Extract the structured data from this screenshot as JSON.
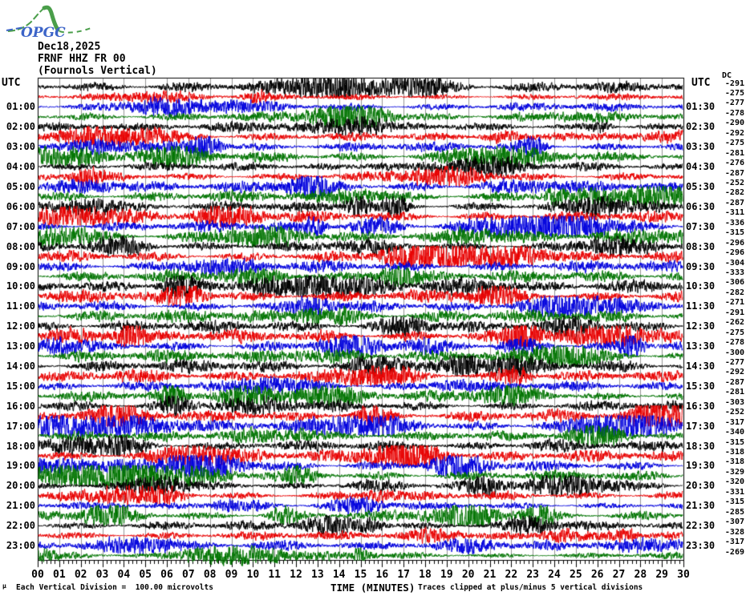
{
  "logo": {
    "text": "OPGC"
  },
  "header": {
    "date": "Dec18,2025",
    "station": "FRNF HHZ FR 00",
    "description": "(Fournols Vertical)"
  },
  "axes": {
    "left_header": "UTC",
    "right_header": "UTC",
    "dc_header": "DC",
    "x_label": "TIME (MINUTES)",
    "x_ticks": [
      "00",
      "01",
      "02",
      "03",
      "04",
      "05",
      "06",
      "07",
      "08",
      "09",
      "10",
      "11",
      "12",
      "13",
      "14",
      "15",
      "16",
      "17",
      "18",
      "19",
      "20",
      "21",
      "22",
      "23",
      "24",
      "25",
      "26",
      "27",
      "28",
      "29",
      "30"
    ],
    "footer_left": "Each Vertical Division =  100.00 microvolts",
    "footer_right": "Traces clipped at plus/minus 5 vertical divisions",
    "corner_mark": "µ"
  },
  "colors": {
    "black": "#000000",
    "red": "#e80000",
    "blue": "#0000dd",
    "green": "#007400",
    "grid": "#949494",
    "border": "#000000",
    "logo_green": "#4a9e4a",
    "logo_blue": "#3c64c8"
  },
  "chart_data": {
    "type": "line",
    "subtype": "helicorder",
    "title": "FRNF HHZ FR 00 (Fournols Vertical) Dec18,2025",
    "xlabel": "TIME (MINUTES)",
    "x_range": [
      0,
      30
    ],
    "row_duration_minutes": 30,
    "grid": "vertical lines every 1 minute",
    "legend_position": "none",
    "notes": [
      "Each Vertical Division =  100.00 microvolts",
      "Traces clipped at plus/minus 5 vertical divisions"
    ],
    "rows": [
      {
        "start": "00:00",
        "end": "00:30",
        "color": "black",
        "dc_offset": -291,
        "left_label": "",
        "right_label": ""
      },
      {
        "start": "00:30",
        "end": "01:00",
        "color": "red",
        "dc_offset": -275,
        "left_label": "",
        "right_label": ""
      },
      {
        "start": "01:00",
        "end": "01:30",
        "color": "blue",
        "dc_offset": -277,
        "left_label": "01:00",
        "right_label": "01:30"
      },
      {
        "start": "01:30",
        "end": "02:00",
        "color": "green",
        "dc_offset": -278,
        "left_label": "",
        "right_label": ""
      },
      {
        "start": "02:00",
        "end": "02:30",
        "color": "black",
        "dc_offset": -290,
        "left_label": "02:00",
        "right_label": "02:30"
      },
      {
        "start": "02:30",
        "end": "03:00",
        "color": "red",
        "dc_offset": -292,
        "left_label": "",
        "right_label": ""
      },
      {
        "start": "03:00",
        "end": "03:30",
        "color": "blue",
        "dc_offset": -275,
        "left_label": "03:00",
        "right_label": "03:30"
      },
      {
        "start": "03:30",
        "end": "04:00",
        "color": "green",
        "dc_offset": -281,
        "left_label": "",
        "right_label": ""
      },
      {
        "start": "04:00",
        "end": "04:30",
        "color": "black",
        "dc_offset": -276,
        "left_label": "04:00",
        "right_label": "04:30"
      },
      {
        "start": "04:30",
        "end": "05:00",
        "color": "red",
        "dc_offset": -287,
        "left_label": "",
        "right_label": ""
      },
      {
        "start": "05:00",
        "end": "05:30",
        "color": "blue",
        "dc_offset": -252,
        "left_label": "05:00",
        "right_label": "05:30"
      },
      {
        "start": "05:30",
        "end": "06:00",
        "color": "green",
        "dc_offset": -282,
        "left_label": "",
        "right_label": ""
      },
      {
        "start": "06:00",
        "end": "06:30",
        "color": "black",
        "dc_offset": -287,
        "left_label": "06:00",
        "right_label": "06:30"
      },
      {
        "start": "06:30",
        "end": "07:00",
        "color": "red",
        "dc_offset": -311,
        "left_label": "",
        "right_label": ""
      },
      {
        "start": "07:00",
        "end": "07:30",
        "color": "blue",
        "dc_offset": -336,
        "left_label": "07:00",
        "right_label": "07:30"
      },
      {
        "start": "07:30",
        "end": "08:00",
        "color": "green",
        "dc_offset": -315,
        "left_label": "",
        "right_label": ""
      },
      {
        "start": "08:00",
        "end": "08:30",
        "color": "black",
        "dc_offset": -296,
        "left_label": "08:00",
        "right_label": "08:30"
      },
      {
        "start": "08:30",
        "end": "09:00",
        "color": "red",
        "dc_offset": -296,
        "left_label": "",
        "right_label": ""
      },
      {
        "start": "09:00",
        "end": "09:30",
        "color": "blue",
        "dc_offset": -304,
        "left_label": "09:00",
        "right_label": "09:30"
      },
      {
        "start": "09:30",
        "end": "10:00",
        "color": "green",
        "dc_offset": -333,
        "left_label": "",
        "right_label": ""
      },
      {
        "start": "10:00",
        "end": "10:30",
        "color": "black",
        "dc_offset": -306,
        "left_label": "10:00",
        "right_label": "10:30"
      },
      {
        "start": "10:30",
        "end": "11:00",
        "color": "red",
        "dc_offset": -282,
        "left_label": "",
        "right_label": ""
      },
      {
        "start": "11:00",
        "end": "11:30",
        "color": "blue",
        "dc_offset": -271,
        "left_label": "11:00",
        "right_label": "11:30"
      },
      {
        "start": "11:30",
        "end": "12:00",
        "color": "green",
        "dc_offset": -291,
        "left_label": "",
        "right_label": ""
      },
      {
        "start": "12:00",
        "end": "12:30",
        "color": "black",
        "dc_offset": -262,
        "left_label": "12:00",
        "right_label": "12:30"
      },
      {
        "start": "12:30",
        "end": "13:00",
        "color": "red",
        "dc_offset": -275,
        "left_label": "",
        "right_label": ""
      },
      {
        "start": "13:00",
        "end": "13:30",
        "color": "blue",
        "dc_offset": -278,
        "left_label": "13:00",
        "right_label": "13:30"
      },
      {
        "start": "13:30",
        "end": "14:00",
        "color": "green",
        "dc_offset": -300,
        "left_label": "",
        "right_label": ""
      },
      {
        "start": "14:00",
        "end": "14:30",
        "color": "black",
        "dc_offset": -277,
        "left_label": "14:00",
        "right_label": "14:30"
      },
      {
        "start": "14:30",
        "end": "15:00",
        "color": "red",
        "dc_offset": -292,
        "left_label": "",
        "right_label": ""
      },
      {
        "start": "15:00",
        "end": "15:30",
        "color": "blue",
        "dc_offset": -287,
        "left_label": "15:00",
        "right_label": "15:30"
      },
      {
        "start": "15:30",
        "end": "16:00",
        "color": "green",
        "dc_offset": -281,
        "left_label": "",
        "right_label": ""
      },
      {
        "start": "16:00",
        "end": "16:30",
        "color": "black",
        "dc_offset": -303,
        "left_label": "16:00",
        "right_label": "16:30"
      },
      {
        "start": "16:30",
        "end": "17:00",
        "color": "red",
        "dc_offset": -252,
        "left_label": "",
        "right_label": ""
      },
      {
        "start": "17:00",
        "end": "17:30",
        "color": "blue",
        "dc_offset": -317,
        "left_label": "17:00",
        "right_label": "17:30"
      },
      {
        "start": "17:30",
        "end": "18:00",
        "color": "green",
        "dc_offset": -340,
        "left_label": "",
        "right_label": ""
      },
      {
        "start": "18:00",
        "end": "18:30",
        "color": "black",
        "dc_offset": -315,
        "left_label": "18:00",
        "right_label": "18:30"
      },
      {
        "start": "18:30",
        "end": "19:00",
        "color": "red",
        "dc_offset": -318,
        "left_label": "",
        "right_label": ""
      },
      {
        "start": "19:00",
        "end": "19:30",
        "color": "blue",
        "dc_offset": -318,
        "left_label": "19:00",
        "right_label": "19:30"
      },
      {
        "start": "19:30",
        "end": "20:00",
        "color": "green",
        "dc_offset": -329,
        "left_label": "",
        "right_label": ""
      },
      {
        "start": "20:00",
        "end": "20:30",
        "color": "black",
        "dc_offset": -320,
        "left_label": "20:00",
        "right_label": "20:30"
      },
      {
        "start": "20:30",
        "end": "21:00",
        "color": "red",
        "dc_offset": -331,
        "left_label": "",
        "right_label": ""
      },
      {
        "start": "21:00",
        "end": "21:30",
        "color": "blue",
        "dc_offset": -315,
        "left_label": "21:00",
        "right_label": "21:30"
      },
      {
        "start": "21:30",
        "end": "22:00",
        "color": "green",
        "dc_offset": -285,
        "left_label": "",
        "right_label": ""
      },
      {
        "start": "22:00",
        "end": "22:30",
        "color": "black",
        "dc_offset": -307,
        "left_label": "22:00",
        "right_label": "22:30"
      },
      {
        "start": "22:30",
        "end": "23:00",
        "color": "red",
        "dc_offset": -328,
        "left_label": "",
        "right_label": ""
      },
      {
        "start": "23:00",
        "end": "23:30",
        "color": "blue",
        "dc_offset": -317,
        "left_label": "23:00",
        "right_label": "23:30"
      },
      {
        "start": "23:30",
        "end": "00:00",
        "color": "green",
        "dc_offset": -269,
        "left_label": "",
        "right_label": ""
      }
    ]
  }
}
